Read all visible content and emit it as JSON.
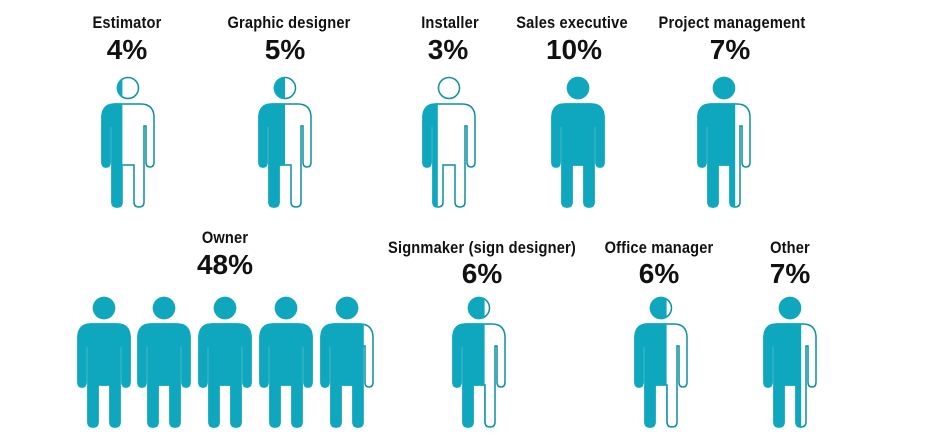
{
  "colors": {
    "fill": "#0fa7bd",
    "outline": "#0b8fa3",
    "text": "#111111"
  },
  "chart_data": {
    "type": "pictograph",
    "categories": [
      "Estimator",
      "Graphic designer",
      "Installer",
      "Sales executive",
      "Project management",
      "Owner",
      "Signmaker (sign designer)",
      "Office manager",
      "Other"
    ],
    "values": [
      4,
      5,
      3,
      10,
      7,
      48,
      6,
      6,
      7
    ],
    "unit_per_icon": 10
  },
  "items": [
    {
      "label": "Estimator",
      "pct": "4%",
      "fills": [
        0.4
      ]
    },
    {
      "label": "Graphic designer",
      "pct": "5%",
      "fills": [
        0.5
      ]
    },
    {
      "label": "Installer",
      "pct": "3%",
      "fills": [
        0.3
      ]
    },
    {
      "label": "Sales executive",
      "pct": "10%",
      "fills": [
        1
      ]
    },
    {
      "label": "Project management",
      "pct": "7%",
      "fills": [
        0.7
      ]
    },
    {
      "label": "Owner",
      "pct": "48%",
      "fills": [
        1,
        1,
        1,
        1,
        0.8
      ]
    },
    {
      "label": "Signmaker (sign designer)",
      "pct": "6%",
      "fills": [
        0.6
      ]
    },
    {
      "label": "Office manager",
      "pct": "6%",
      "fills": [
        0.6
      ]
    },
    {
      "label": "Other",
      "pct": "7%",
      "fills": [
        0.7
      ]
    }
  ]
}
